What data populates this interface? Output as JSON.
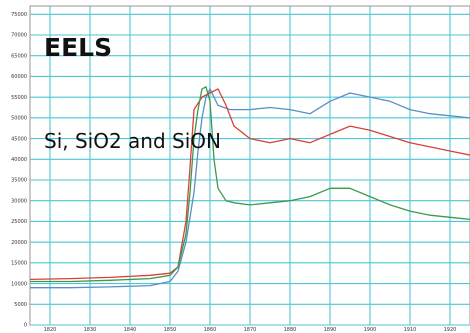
{
  "chart_data": {
    "type": "line",
    "title": "EELS",
    "subtitle": "Si, SiO2 and SiON",
    "xlabel": "",
    "ylabel": "",
    "x_ticks": [
      "1820",
      "1830",
      "1840",
      "1850",
      "1860",
      "1870",
      "1880",
      "1890",
      "1900",
      "1910",
      "1920"
    ],
    "y_ticks": [
      "0",
      "5000",
      "10000",
      "15000",
      "20000",
      "25000",
      "30000",
      "35000",
      "40000",
      "45000",
      "50000",
      "55000",
      "60000",
      "65000",
      "70000",
      "75000"
    ],
    "xlim": [
      1815,
      1925
    ],
    "ylim": [
      0,
      77000
    ],
    "grid": true,
    "colors": {
      "grid": "#4fc6d4",
      "blue": "#5a8fc6",
      "red": "#d9403a",
      "green": "#3a9a4a"
    },
    "series": [
      {
        "color": "blue",
        "x": [
          1815,
          1825,
          1835,
          1845,
          1850,
          1852,
          1854,
          1856,
          1857,
          1858,
          1859,
          1860,
          1862,
          1865,
          1870,
          1875,
          1880,
          1885,
          1890,
          1895,
          1900,
          1905,
          1910,
          1915,
          1920,
          1925
        ],
        "y": [
          9000,
          9000,
          9200,
          9500,
          10500,
          13000,
          20000,
          32000,
          42000,
          50000,
          55000,
          57000,
          53000,
          52000,
          52000,
          52500,
          52000,
          51000,
          54000,
          56000,
          55000,
          54000,
          52000,
          51000,
          50500,
          50000
        ]
      },
      {
        "color": "red",
        "x": [
          1815,
          1825,
          1835,
          1845,
          1850,
          1852,
          1854,
          1855,
          1856,
          1858,
          1860,
          1862,
          1864,
          1866,
          1870,
          1875,
          1880,
          1885,
          1890,
          1895,
          1900,
          1905,
          1910,
          1915,
          1920,
          1925
        ],
        "y": [
          11000,
          11200,
          11500,
          12000,
          12500,
          14000,
          25000,
          38000,
          52000,
          55000,
          56000,
          57000,
          53000,
          48000,
          45000,
          44000,
          45000,
          44000,
          46000,
          48000,
          47000,
          45500,
          44000,
          43000,
          42000,
          41000
        ]
      },
      {
        "color": "green",
        "x": [
          1815,
          1825,
          1835,
          1845,
          1850,
          1852,
          1854,
          1855,
          1856,
          1857,
          1858,
          1859,
          1860,
          1861,
          1862,
          1864,
          1866,
          1870,
          1875,
          1880,
          1885,
          1890,
          1895,
          1900,
          1905,
          1910,
          1915,
          1920,
          1925
        ],
        "y": [
          10500,
          10500,
          10800,
          11200,
          12000,
          14000,
          22000,
          32000,
          45000,
          52000,
          57000,
          57500,
          54000,
          40000,
          33000,
          30000,
          29500,
          29000,
          29500,
          30000,
          31000,
          33000,
          33000,
          31000,
          29000,
          27500,
          26500,
          26000,
          25500
        ]
      }
    ]
  }
}
